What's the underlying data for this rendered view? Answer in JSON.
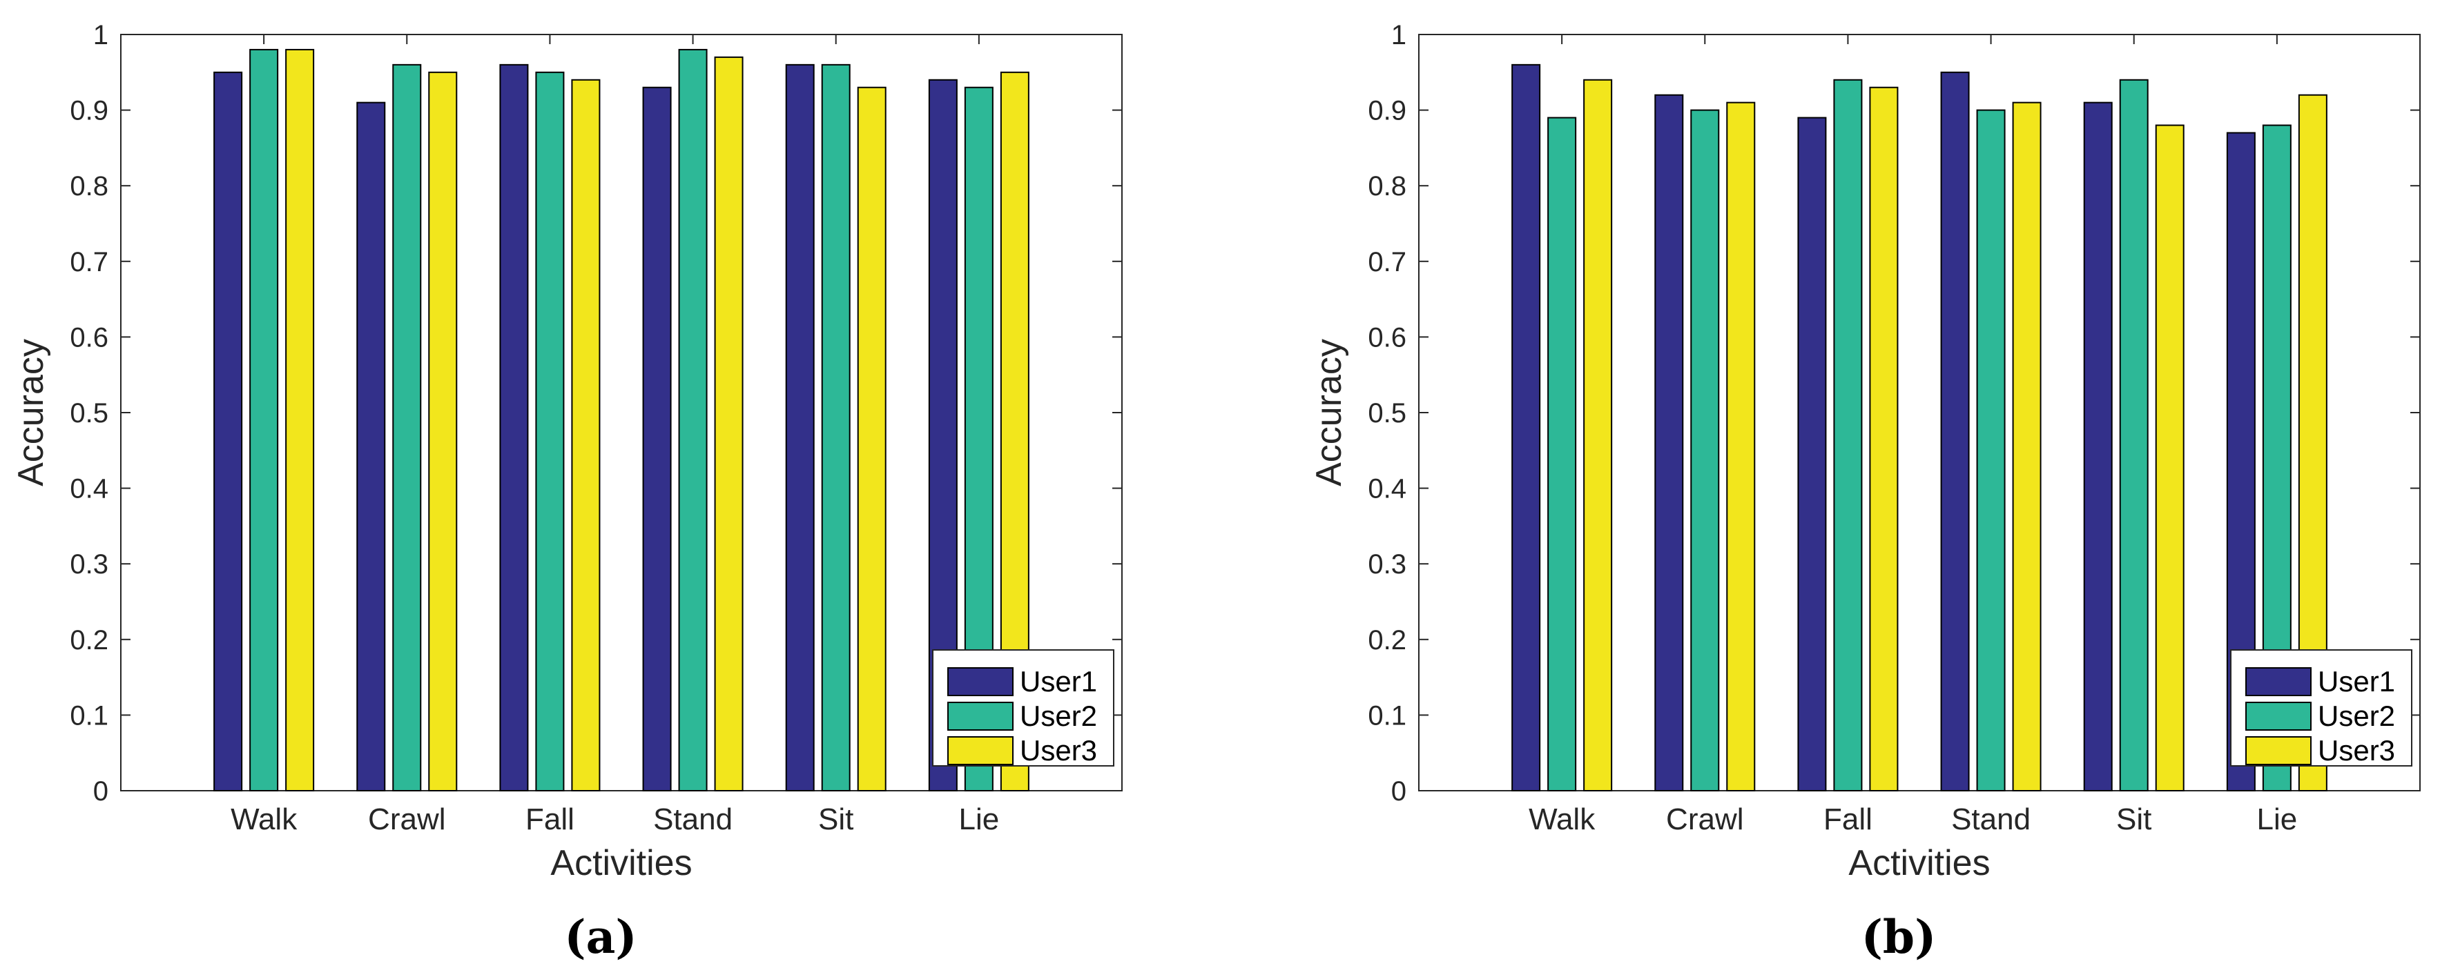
{
  "chart_data": [
    {
      "type": "bar",
      "panel_label": "(a)",
      "categories": [
        "Walk",
        "Crawl",
        "Fall",
        "Stand",
        "Sit",
        "Lie"
      ],
      "series": [
        {
          "name": "User1",
          "color": "#33308a",
          "values": [
            0.95,
            0.91,
            0.96,
            0.93,
            0.96,
            0.94
          ]
        },
        {
          "name": "User2",
          "color": "#2db897",
          "values": [
            0.98,
            0.96,
            0.95,
            0.98,
            0.96,
            0.93
          ]
        },
        {
          "name": "User3",
          "color": "#f2e61c",
          "values": [
            0.98,
            0.95,
            0.94,
            0.97,
            0.93,
            0.95
          ]
        }
      ],
      "xlabel": "Activities",
      "ylabel": "Accuracy",
      "ylim": [
        0,
        1
      ],
      "yticks": [
        "0",
        "0.1",
        "0.2",
        "0.3",
        "0.4",
        "0.5",
        "0.6",
        "0.7",
        "0.8",
        "0.9",
        "1"
      ],
      "grid": false,
      "legend_position": "bottom-right"
    },
    {
      "type": "bar",
      "panel_label": "(b)",
      "categories": [
        "Walk",
        "Crawl",
        "Fall",
        "Stand",
        "Sit",
        "Lie"
      ],
      "series": [
        {
          "name": "User1",
          "color": "#33308a",
          "values": [
            0.96,
            0.92,
            0.89,
            0.95,
            0.91,
            0.87
          ]
        },
        {
          "name": "User2",
          "color": "#2db897",
          "values": [
            0.89,
            0.9,
            0.94,
            0.9,
            0.94,
            0.88
          ]
        },
        {
          "name": "User3",
          "color": "#f2e61c",
          "values": [
            0.94,
            0.91,
            0.93,
            0.91,
            0.88,
            0.92
          ]
        }
      ],
      "xlabel": "Activities",
      "ylabel": "Accuracy",
      "ylim": [
        0,
        1
      ],
      "yticks": [
        "0",
        "0.1",
        "0.2",
        "0.3",
        "0.4",
        "0.5",
        "0.6",
        "0.7",
        "0.8",
        "0.9",
        "1"
      ],
      "grid": false,
      "legend_position": "bottom-right"
    }
  ]
}
